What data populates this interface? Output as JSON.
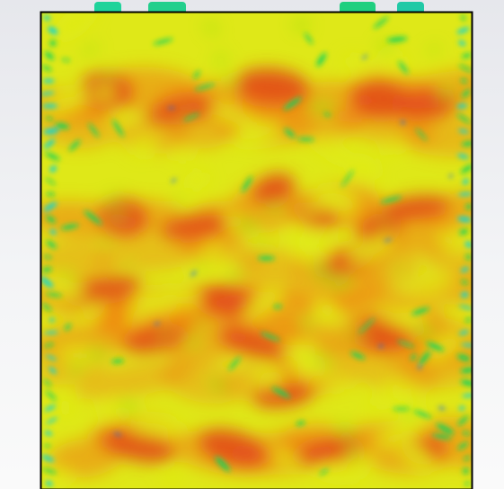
{
  "viewport": {
    "background_top": "#e6e7ec",
    "background_bottom": "#fafafa"
  },
  "field_plot": {
    "colormap": [
      "#1565ff",
      "#00d5e0",
      "#19d35a",
      "#8fe21a",
      "#e0ec16",
      "#f3b812",
      "#f07e14",
      "#e2461b"
    ],
    "dominant_colors": [
      "#e2461b",
      "#f07e14",
      "#e0ec16",
      "#19d35a"
    ],
    "frame_color": "#000000"
  }
}
